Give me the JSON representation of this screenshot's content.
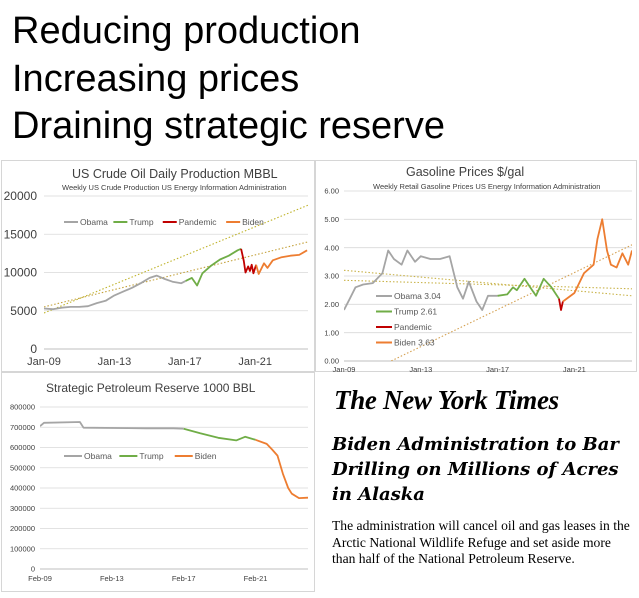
{
  "headlines": [
    "Reducing production",
    "Increasing prices",
    "Draining strategic reserve"
  ],
  "chart_data": [
    {
      "id": "prod",
      "type": "line",
      "title": "US Crude Oil Daily Production MBBL",
      "subtitle": "Weekly US Crude Production US Energy Information Administration",
      "ylim": [
        0,
        20000
      ],
      "yticks": [
        0,
        5000,
        10000,
        15000,
        20000
      ],
      "ytick_labels": [
        "0",
        "5000",
        "10000",
        "15000",
        "20000"
      ],
      "xlim": [
        2009.0,
        2024.0
      ],
      "xticks": [
        2009,
        2013,
        2017,
        2021
      ],
      "xtick_labels": [
        "Jan-09",
        "Jan-13",
        "Jan-17",
        "Jan-21"
      ],
      "grid": true,
      "legend_position": "upper-left",
      "series": [
        {
          "name": "Obama",
          "color": "#a5a5a5",
          "points": [
            [
              2009.0,
              5300
            ],
            [
              2009.5,
              5200
            ],
            [
              2010.0,
              5400
            ],
            [
              2010.5,
              5500
            ],
            [
              2011.0,
              5500
            ],
            [
              2011.5,
              5600
            ],
            [
              2012.0,
              6000
            ],
            [
              2012.5,
              6300
            ],
            [
              2013.0,
              7000
            ],
            [
              2013.5,
              7500
            ],
            [
              2014.0,
              8000
            ],
            [
              2014.5,
              8600
            ],
            [
              2015.0,
              9300
            ],
            [
              2015.4,
              9600
            ],
            [
              2015.8,
              9200
            ],
            [
              2016.3,
              8800
            ],
            [
              2016.8,
              8600
            ],
            [
              2017.05,
              8900
            ]
          ]
        },
        {
          "name": "Trump",
          "color": "#70ad47",
          "points": [
            [
              2017.05,
              8900
            ],
            [
              2017.4,
              9300
            ],
            [
              2017.7,
              8300
            ],
            [
              2018.0,
              9900
            ],
            [
              2018.5,
              10900
            ],
            [
              2019.0,
              11700
            ],
            [
              2019.5,
              12200
            ],
            [
              2020.0,
              12900
            ],
            [
              2020.2,
              13100
            ]
          ]
        },
        {
          "name": "Pandemic",
          "color": "#c00000",
          "points": [
            [
              2020.2,
              13100
            ],
            [
              2020.35,
              11500
            ],
            [
              2020.45,
              10000
            ],
            [
              2020.6,
              10800
            ],
            [
              2020.7,
              10200
            ],
            [
              2020.8,
              11000
            ],
            [
              2020.9,
              9900
            ],
            [
              2021.05,
              11000
            ]
          ]
        },
        {
          "name": "Biden",
          "color": "#ed7d31",
          "points": [
            [
              2021.05,
              11000
            ],
            [
              2021.2,
              9800
            ],
            [
              2021.5,
              11200
            ],
            [
              2021.7,
              10600
            ],
            [
              2022.0,
              11600
            ],
            [
              2022.5,
              12000
            ],
            [
              2023.0,
              12200
            ],
            [
              2023.5,
              12300
            ],
            [
              2023.95,
              12900
            ]
          ]
        }
      ],
      "trendlines": [
        {
          "color": "#bfb32a",
          "points": [
            [
              2009.0,
              4700
            ],
            [
              2024.0,
              18800
            ]
          ]
        },
        {
          "color": "#c4a23c",
          "points": [
            [
              2009.0,
              5500
            ],
            [
              2024.0,
              14000
            ]
          ]
        }
      ]
    },
    {
      "id": "gas",
      "type": "line",
      "title": "Gasoline Prices $/gal",
      "subtitle": "Weekly Retail Gasoline Prices US Energy Information Administration",
      "ylim": [
        0,
        6
      ],
      "yticks": [
        0,
        1,
        2,
        3,
        4,
        5,
        6
      ],
      "ytick_labels": [
        "0.00",
        "1.00",
        "2.00",
        "3.00",
        "4.00",
        "5.00",
        "6.00"
      ],
      "xlim": [
        2009.0,
        2024.0
      ],
      "xticks": [
        2009,
        2013,
        2017,
        2021
      ],
      "xtick_labels": [
        "Jan-09",
        "Jan-13",
        "Jan-17",
        "Jan-21"
      ],
      "grid": true,
      "legend_position": "lower-left",
      "series": [
        {
          "name": "Obama",
          "legend": "Obama 3.04",
          "color": "#a5a5a5",
          "points": [
            [
              2009.0,
              1.8
            ],
            [
              2009.3,
              2.2
            ],
            [
              2009.6,
              2.6
            ],
            [
              2010.0,
              2.7
            ],
            [
              2010.5,
              2.75
            ],
            [
              2011.0,
              3.1
            ],
            [
              2011.3,
              3.9
            ],
            [
              2011.6,
              3.6
            ],
            [
              2012.0,
              3.4
            ],
            [
              2012.3,
              3.9
            ],
            [
              2012.7,
              3.5
            ],
            [
              2013.0,
              3.7
            ],
            [
              2013.5,
              3.6
            ],
            [
              2014.0,
              3.6
            ],
            [
              2014.5,
              3.7
            ],
            [
              2014.9,
              2.6
            ],
            [
              2015.2,
              2.2
            ],
            [
              2015.5,
              2.8
            ],
            [
              2015.9,
              2.1
            ],
            [
              2016.2,
              1.8
            ],
            [
              2016.5,
              2.3
            ],
            [
              2017.0,
              2.3
            ]
          ]
        },
        {
          "name": "Trump",
          "legend": "Trump 2.61",
          "color": "#70ad47",
          "points": [
            [
              2017.0,
              2.3
            ],
            [
              2017.5,
              2.35
            ],
            [
              2017.8,
              2.6
            ],
            [
              2018.0,
              2.5
            ],
            [
              2018.4,
              2.9
            ],
            [
              2018.8,
              2.5
            ],
            [
              2019.0,
              2.3
            ],
            [
              2019.4,
              2.9
            ],
            [
              2019.8,
              2.6
            ],
            [
              2020.2,
              2.2
            ]
          ]
        },
        {
          "name": "Pandemic",
          "legend": "Pandemic",
          "color": "#c00000",
          "points": [
            [
              2020.2,
              2.2
            ],
            [
              2020.3,
              1.8
            ],
            [
              2020.4,
              2.1
            ]
          ]
        },
        {
          "name": "Biden",
          "legend": "Biden 3.63",
          "color": "#ed7d31",
          "points": [
            [
              2020.4,
              2.1
            ],
            [
              2021.0,
              2.4
            ],
            [
              2021.5,
              3.1
            ],
            [
              2022.0,
              3.4
            ],
            [
              2022.2,
              4.3
            ],
            [
              2022.45,
              5.0
            ],
            [
              2022.7,
              3.9
            ],
            [
              2022.9,
              3.4
            ],
            [
              2023.2,
              3.3
            ],
            [
              2023.5,
              3.8
            ],
            [
              2023.8,
              3.4
            ],
            [
              2024.0,
              3.9
            ]
          ]
        }
      ],
      "trendlines": [
        {
          "color": "#c9b34a",
          "points": [
            [
              2009.0,
              3.2
            ],
            [
              2024.0,
              2.3
            ]
          ]
        },
        {
          "color": "#c9b34a",
          "points": [
            [
              2009.0,
              2.85
            ],
            [
              2024.0,
              2.55
            ]
          ]
        },
        {
          "color": "#d4a050",
          "points": [
            [
              2009.0,
              -0.8
            ],
            [
              2024.0,
              4.1
            ]
          ]
        }
      ]
    },
    {
      "id": "spr",
      "type": "line",
      "title": "Strategic Petroleum Reserve 1000 BBL",
      "ylim": [
        0,
        800000
      ],
      "yticks": [
        0,
        100000,
        200000,
        300000,
        400000,
        500000,
        600000,
        700000,
        800000
      ],
      "ytick_labels": [
        "0",
        "100000",
        "200000",
        "300000",
        "400000",
        "500000",
        "600000",
        "700000",
        "800000"
      ],
      "xlim": [
        2009.08,
        2024.0
      ],
      "xticks": [
        2009.08,
        2013.08,
        2017.08,
        2021.08
      ],
      "xtick_labels": [
        "Feb-09",
        "Feb-13",
        "Feb-17",
        "Feb-21"
      ],
      "grid": true,
      "legend_position": "center-left",
      "series": [
        {
          "name": "Obama",
          "color": "#a5a5a5",
          "points": [
            [
              2009.08,
              705000
            ],
            [
              2009.3,
              722000
            ],
            [
              2011.3,
              726000
            ],
            [
              2011.5,
              698000
            ],
            [
              2014.0,
              696000
            ],
            [
              2015.0,
              695000
            ],
            [
              2016.5,
              695000
            ],
            [
              2017.08,
              693000
            ]
          ]
        },
        {
          "name": "Trump",
          "color": "#70ad47",
          "points": [
            [
              2017.08,
              693000
            ],
            [
              2018.0,
              670000
            ],
            [
              2019.0,
              648000
            ],
            [
              2020.0,
              635000
            ],
            [
              2020.5,
              653000
            ],
            [
              2021.08,
              638000
            ]
          ]
        },
        {
          "name": "Biden",
          "color": "#ed7d31",
          "points": [
            [
              2021.08,
              638000
            ],
            [
              2021.7,
              618000
            ],
            [
              2022.0,
              590000
            ],
            [
              2022.3,
              560000
            ],
            [
              2022.6,
              470000
            ],
            [
              2022.9,
              400000
            ],
            [
              2023.1,
              372000
            ],
            [
              2023.5,
              350000
            ],
            [
              2024.0,
              352000
            ]
          ]
        }
      ]
    }
  ],
  "nyt": {
    "logo": "The New York Times",
    "headline": "Biden Administration to Bar Drilling on Millions of Acres in Alaska",
    "body": "The administration will cancel oil and gas leases in the Arctic National Wildlife Refuge and set aside more than half of the National Petroleum Reserve."
  }
}
